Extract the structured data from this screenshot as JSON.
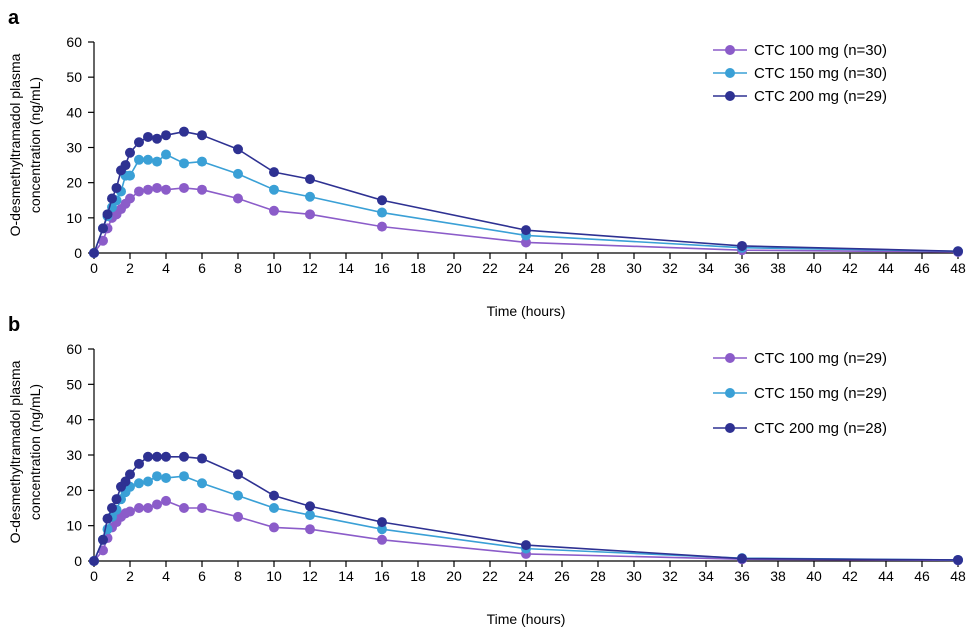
{
  "colors": {
    "series_100mg": "#8b5cc9",
    "series_150mg": "#3aa0d6",
    "series_200mg": "#2e3192"
  },
  "chart_data": [
    {
      "panel_label": "a",
      "type": "line",
      "xlabel": "Time (hours)",
      "ylabel_line1": "O-desmethyltramadol plasma",
      "ylabel_line2": "concentration (ng/mL)",
      "xlim": [
        0,
        48
      ],
      "ylim": [
        0,
        60
      ],
      "xticks": [
        0,
        2,
        4,
        6,
        8,
        10,
        12,
        14,
        16,
        18,
        20,
        22,
        24,
        26,
        28,
        30,
        32,
        34,
        36,
        38,
        40,
        42,
        44,
        46,
        48
      ],
      "yticks": [
        0,
        10,
        20,
        30,
        40,
        50,
        60
      ],
      "legend_position": "top-right",
      "series": [
        {
          "name": "CTC 100 mg (n=30)",
          "color": "#8b5cc9",
          "x": [
            0,
            0.5,
            0.75,
            1,
            1.25,
            1.5,
            1.75,
            2,
            2.5,
            3,
            3.5,
            4,
            5,
            6,
            8,
            10,
            12,
            16,
            24,
            36,
            48
          ],
          "y": [
            0,
            3.5,
            7,
            10,
            11,
            12.5,
            14,
            15.5,
            17.5,
            18,
            18.5,
            18,
            18.5,
            18,
            15.5,
            12,
            11,
            7.5,
            3,
            0.8,
            0.3
          ]
        },
        {
          "name": "CTC 150 mg (n=30)",
          "color": "#3aa0d6",
          "x": [
            0,
            0.5,
            0.75,
            1,
            1.25,
            1.5,
            1.75,
            2,
            2.5,
            3,
            3.5,
            4,
            5,
            6,
            8,
            10,
            12,
            16,
            24,
            36,
            48
          ],
          "y": [
            0,
            7,
            10.5,
            13,
            15,
            17.5,
            22,
            22,
            26.5,
            26.5,
            26,
            28,
            25.5,
            26,
            22.5,
            18,
            16,
            11.5,
            5,
            1.5,
            0.5
          ]
        },
        {
          "name": "CTC 200 mg (n=29)",
          "color": "#2e3192",
          "x": [
            0,
            0.5,
            0.75,
            1,
            1.25,
            1.5,
            1.75,
            2,
            2.5,
            3,
            3.5,
            4,
            5,
            6,
            8,
            10,
            12,
            16,
            24,
            36,
            48
          ],
          "y": [
            0,
            7,
            11,
            15.5,
            18.5,
            23.5,
            25,
            28.5,
            31.5,
            33,
            32.5,
            33.5,
            34.5,
            33.5,
            29.5,
            23,
            21,
            15,
            6.5,
            2,
            0.5
          ]
        }
      ]
    },
    {
      "panel_label": "b",
      "type": "line",
      "xlabel": "Time (hours)",
      "ylabel_line1": "O-desmethyltramadol plasma",
      "ylabel_line2": "concentration (ng/mL)",
      "xlim": [
        0,
        48
      ],
      "ylim": [
        0,
        60
      ],
      "xticks": [
        0,
        2,
        4,
        6,
        8,
        10,
        12,
        14,
        16,
        18,
        20,
        22,
        24,
        26,
        28,
        30,
        32,
        34,
        36,
        38,
        40,
        42,
        44,
        46,
        48
      ],
      "yticks": [
        0,
        10,
        20,
        30,
        40,
        50,
        60
      ],
      "legend_position": "top-right",
      "series": [
        {
          "name": "CTC 100 mg (n=29)",
          "color": "#8b5cc9",
          "x": [
            0,
            0.5,
            0.75,
            1,
            1.25,
            1.5,
            1.75,
            2,
            2.5,
            3,
            3.5,
            4,
            5,
            6,
            8,
            10,
            12,
            16,
            24,
            36,
            48
          ],
          "y": [
            0,
            3,
            6.5,
            9.5,
            11,
            12.5,
            13.5,
            14,
            15,
            15,
            16,
            17,
            15,
            15,
            12.5,
            9.5,
            9,
            6,
            2,
            0.5,
            0.2
          ]
        },
        {
          "name": "CTC 150 mg (n=29)",
          "color": "#3aa0d6",
          "x": [
            0,
            0.5,
            0.75,
            1,
            1.25,
            1.5,
            1.75,
            2,
            2.5,
            3,
            3.5,
            4,
            5,
            6,
            8,
            10,
            12,
            16,
            24,
            36,
            48
          ],
          "y": [
            0,
            6,
            9,
            12.5,
            14.5,
            17.5,
            19.5,
            21,
            22,
            22.5,
            24,
            23.5,
            24,
            22,
            18.5,
            15,
            13,
            9,
            3.5,
            0.8,
            0.3
          ]
        },
        {
          "name": "CTC 200 mg (n=28)",
          "color": "#2e3192",
          "x": [
            0,
            0.5,
            0.75,
            1,
            1.25,
            1.5,
            1.75,
            2,
            2.5,
            3,
            3.5,
            4,
            5,
            6,
            8,
            10,
            12,
            16,
            24,
            36,
            48
          ],
          "y": [
            0,
            6,
            12,
            15,
            17.5,
            21,
            22.5,
            24.5,
            27.5,
            29.5,
            29.5,
            29.5,
            29.5,
            29,
            24.5,
            18.5,
            15.5,
            11,
            4.5,
            0.7,
            0.3
          ]
        }
      ]
    }
  ]
}
